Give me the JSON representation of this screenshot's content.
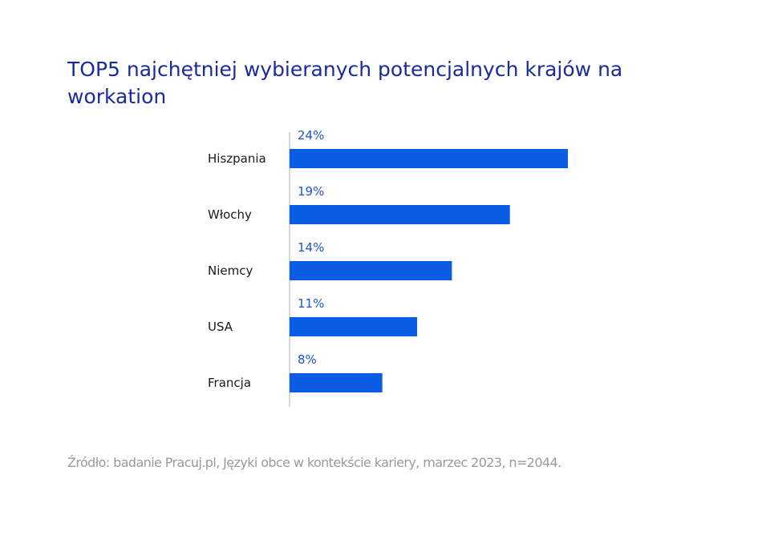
{
  "title": "TOP5 najchętniej wybieranych potencjalnych krajów na workation",
  "source": "Źródło: badanie Pracuj.pl, Języki obce w kontekście kariery, marzec 2023, n=2044.",
  "colors": {
    "title": "#1a2c9c",
    "bar": "#0b5ce5",
    "value_label": "#1a56c9",
    "category_label": "#1a1a1a",
    "axis": "#b0b0b0",
    "source": "#9a9a9a"
  },
  "chart_data": {
    "type": "bar",
    "orientation": "horizontal",
    "categories": [
      "Hiszpania",
      "Włochy",
      "Niemcy",
      "USA",
      "Francja"
    ],
    "values": [
      24,
      19,
      14,
      11,
      8
    ],
    "value_labels": [
      "24%",
      "19%",
      "14%",
      "11%",
      "8%"
    ],
    "unit": "%",
    "xlim": [
      0,
      24
    ],
    "grid": false,
    "legend": "none"
  }
}
